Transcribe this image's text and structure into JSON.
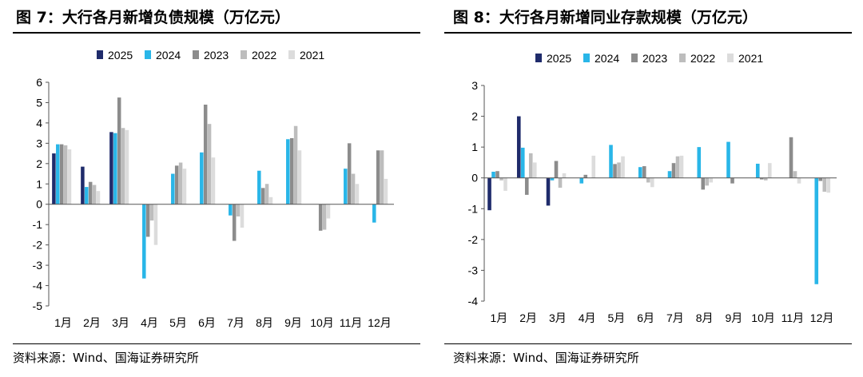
{
  "charts": {
    "left": {
      "title": "图 7：大行各月新增负债规模（万亿元）",
      "source": "资料来源：Wind、国海证券研究所"
    },
    "right": {
      "title": "图 8：大行各月新增同业存款规模（万亿元）",
      "source": "资料来源：Wind、国海证券研究所"
    }
  },
  "colors": {
    "2025": "#1f2b6b",
    "2024": "#29b6e8",
    "2023": "#8c8c8c",
    "2022": "#bdbdbd",
    "2021": "#dcdcdc"
  },
  "chart_data": [
    {
      "type": "bar",
      "title": "图 7：大行各月新增负债规模（万亿元）",
      "xlabel": "",
      "ylabel": "",
      "ylim": [
        -5,
        6
      ],
      "yticks": [
        -5,
        -4,
        -3,
        -2,
        -1,
        0,
        1,
        2,
        3,
        4,
        5,
        6
      ],
      "legend_position": "top",
      "categories": [
        "1月",
        "2月",
        "3月",
        "4月",
        "5月",
        "6月",
        "7月",
        "8月",
        "9月",
        "10月",
        "11月",
        "12月"
      ],
      "series": [
        {
          "name": "2025",
          "values": [
            2.5,
            1.85,
            3.55,
            null,
            null,
            null,
            null,
            null,
            null,
            null,
            null,
            null
          ]
        },
        {
          "name": "2024",
          "values": [
            2.95,
            0.85,
            3.5,
            -3.65,
            1.5,
            2.55,
            -0.55,
            1.65,
            3.2,
            null,
            1.75,
            -0.9
          ]
        },
        {
          "name": "2023",
          "values": [
            2.95,
            1.1,
            5.25,
            -1.6,
            1.9,
            4.9,
            -1.8,
            0.8,
            3.25,
            -1.3,
            3.0,
            2.65
          ]
        },
        {
          "name": "2022",
          "values": [
            2.9,
            0.95,
            3.75,
            -0.8,
            2.05,
            3.95,
            -0.6,
            1.0,
            3.85,
            -1.25,
            1.5,
            2.65
          ]
        },
        {
          "name": "2021",
          "values": [
            2.7,
            0.65,
            3.65,
            -2.0,
            1.75,
            2.3,
            -1.15,
            0.35,
            2.65,
            -0.7,
            1.0,
            1.25
          ]
        }
      ]
    },
    {
      "type": "bar",
      "title": "图 8：大行各月新增同业存款规模（万亿元）",
      "xlabel": "",
      "ylabel": "",
      "ylim": [
        -4,
        3
      ],
      "yticks": [
        -4,
        -3,
        -2,
        -1,
        0,
        1,
        2,
        3
      ],
      "legend_position": "top",
      "categories": [
        "1月",
        "2月",
        "3月",
        "4月",
        "5月",
        "6月",
        "7月",
        "8月",
        "9月",
        "10月",
        "11月",
        "12月"
      ],
      "series": [
        {
          "name": "2025",
          "values": [
            -1.05,
            2.0,
            -0.9,
            null,
            null,
            null,
            null,
            null,
            null,
            null,
            null,
            null
          ]
        },
        {
          "name": "2024",
          "values": [
            0.2,
            0.98,
            -0.08,
            -0.18,
            1.07,
            0.35,
            0.22,
            1.0,
            1.17,
            0.46,
            null,
            -3.45
          ]
        },
        {
          "name": "2023",
          "values": [
            0.22,
            -0.55,
            0.55,
            0.1,
            0.45,
            0.38,
            0.48,
            -0.38,
            -0.18,
            -0.05,
            1.32,
            -0.1
          ]
        },
        {
          "name": "2022",
          "values": [
            -0.08,
            0.8,
            -0.32,
            null,
            0.5,
            -0.15,
            0.7,
            -0.25,
            null,
            -0.08,
            0.22,
            -0.45
          ]
        },
        {
          "name": "2021",
          "values": [
            -0.42,
            0.5,
            0.15,
            0.72,
            0.7,
            -0.3,
            0.72,
            -0.15,
            null,
            0.48,
            -0.18,
            -0.48
          ]
        }
      ]
    }
  ]
}
